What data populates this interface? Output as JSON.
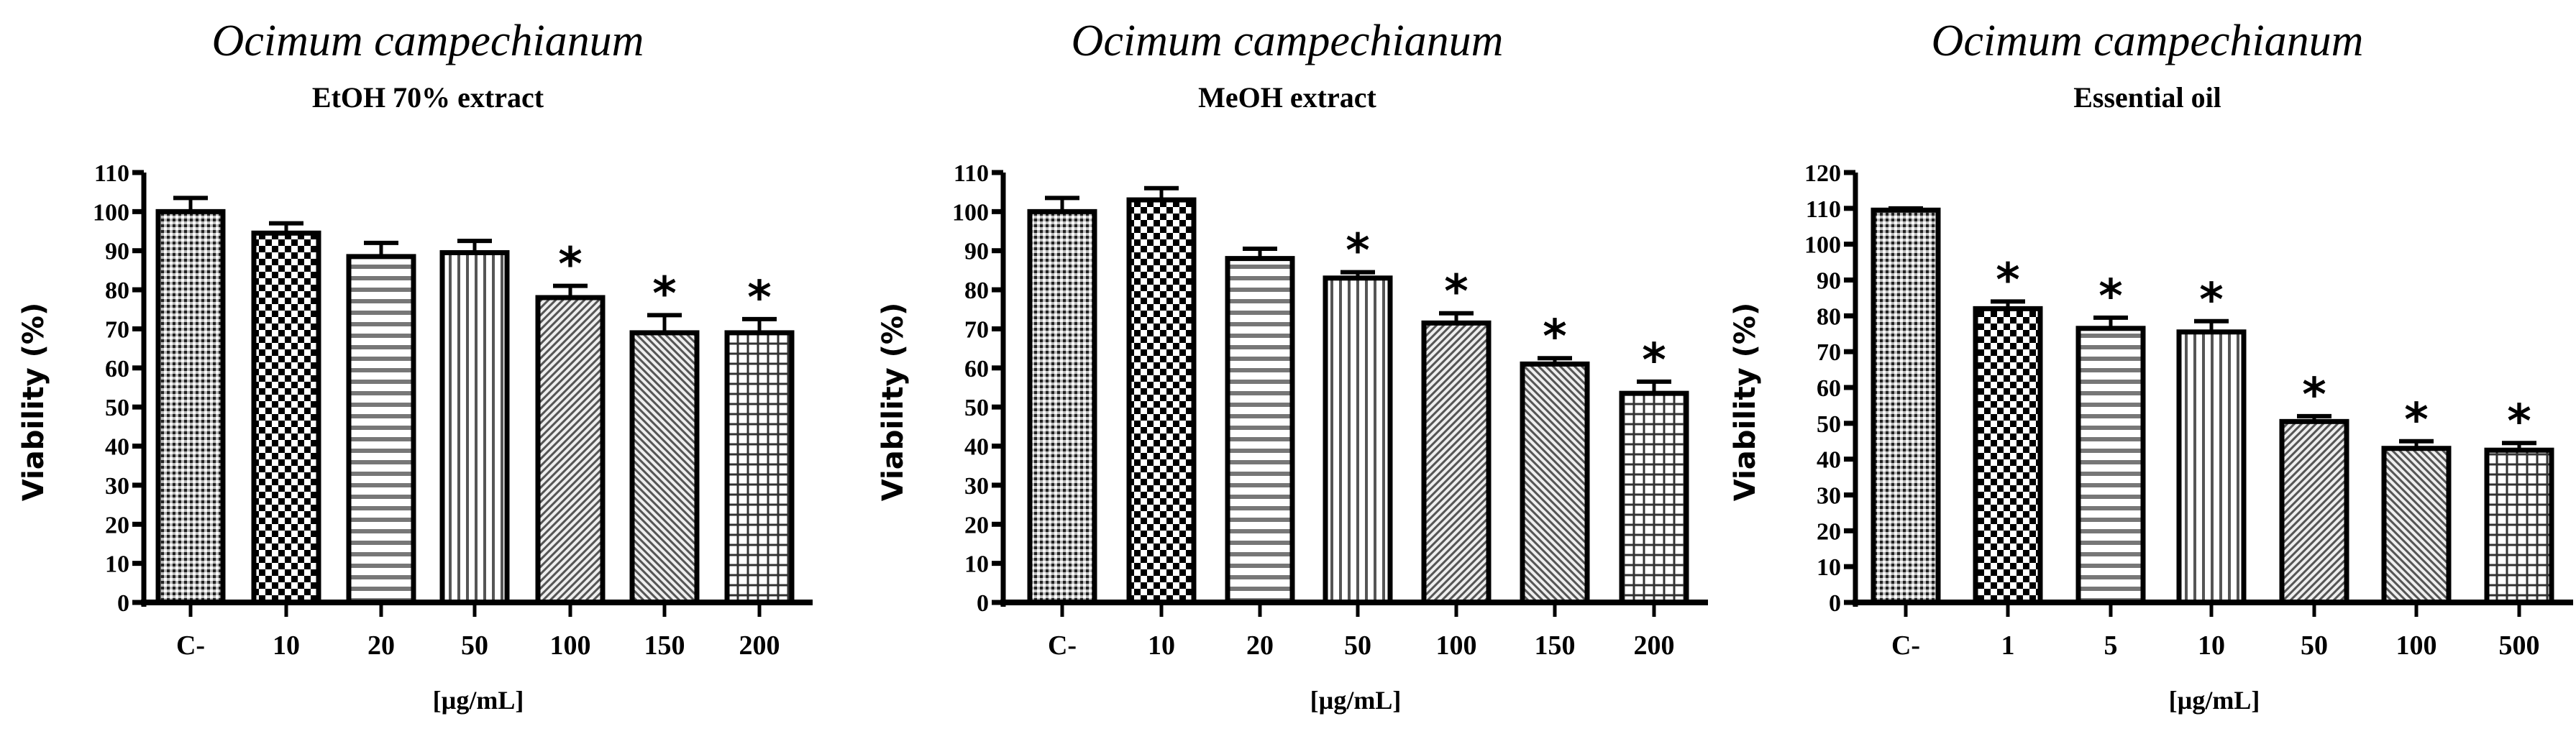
{
  "chart_data": [
    {
      "type": "bar",
      "title": "Ocimum campechianum",
      "subtitle": "EtOH 70% extract",
      "xlabel": "[µg/mL]",
      "ylabel": "Viability (%)",
      "ylim": [
        0,
        110
      ],
      "yticks": [
        0,
        10,
        20,
        30,
        40,
        50,
        60,
        70,
        80,
        90,
        100,
        110
      ],
      "categories": [
        "C-",
        "10",
        "20",
        "50",
        "100",
        "150",
        "200"
      ],
      "values": [
        100,
        94.5,
        88.5,
        89.5,
        78,
        69,
        69
      ],
      "error_upper": [
        103.5,
        97,
        92,
        92.5,
        81,
        73.5,
        72.5
      ],
      "significant": [
        false,
        false,
        false,
        false,
        true,
        true,
        true
      ],
      "patterns": [
        "fine-check",
        "check",
        "hstripe",
        "vstripe",
        "diag-right",
        "diag-left",
        "grid"
      ],
      "grid": false,
      "legend": null
    },
    {
      "type": "bar",
      "title": "Ocimum campechianum",
      "subtitle": "MeOH extract",
      "xlabel": "[µg/mL]",
      "ylabel": "Viability (%)",
      "ylim": [
        0,
        110
      ],
      "yticks": [
        0,
        10,
        20,
        30,
        40,
        50,
        60,
        70,
        80,
        90,
        100,
        110
      ],
      "categories": [
        "C-",
        "10",
        "20",
        "50",
        "100",
        "150",
        "200"
      ],
      "values": [
        100,
        103,
        88,
        83,
        71.5,
        61,
        53.5
      ],
      "error_upper": [
        103.5,
        106,
        90.5,
        84.5,
        74,
        62.5,
        56.5
      ],
      "significant": [
        false,
        false,
        false,
        true,
        true,
        true,
        true
      ],
      "patterns": [
        "fine-check",
        "check",
        "hstripe",
        "vstripe",
        "diag-right",
        "diag-left",
        "grid"
      ],
      "grid": false,
      "legend": null
    },
    {
      "type": "bar",
      "title": "Ocimum campechianum",
      "subtitle": "Essential oil",
      "xlabel": "[µg/mL]",
      "ylabel": "Viability (%)",
      "ylim": [
        0,
        120
      ],
      "yticks": [
        0,
        10,
        20,
        30,
        40,
        50,
        60,
        70,
        80,
        90,
        100,
        110,
        120
      ],
      "categories": [
        "C-",
        "1",
        "5",
        "10",
        "50",
        "100",
        "500"
      ],
      "values": [
        109.5,
        82,
        76.5,
        75.5,
        50.5,
        43,
        42.5
      ],
      "error_upper": [
        110,
        84,
        79.5,
        78.5,
        52,
        45,
        44.5
      ],
      "significant": [
        false,
        true,
        true,
        true,
        true,
        true,
        true
      ],
      "patterns": [
        "fine-check",
        "check",
        "hstripe",
        "vstripe",
        "diag-right",
        "diag-left",
        "grid"
      ],
      "grid": false,
      "legend": null
    }
  ],
  "colors": {
    "bar_outline": "#000000",
    "pattern_dark": "#333333",
    "background": "#ffffff"
  },
  "significance_marker": "*"
}
